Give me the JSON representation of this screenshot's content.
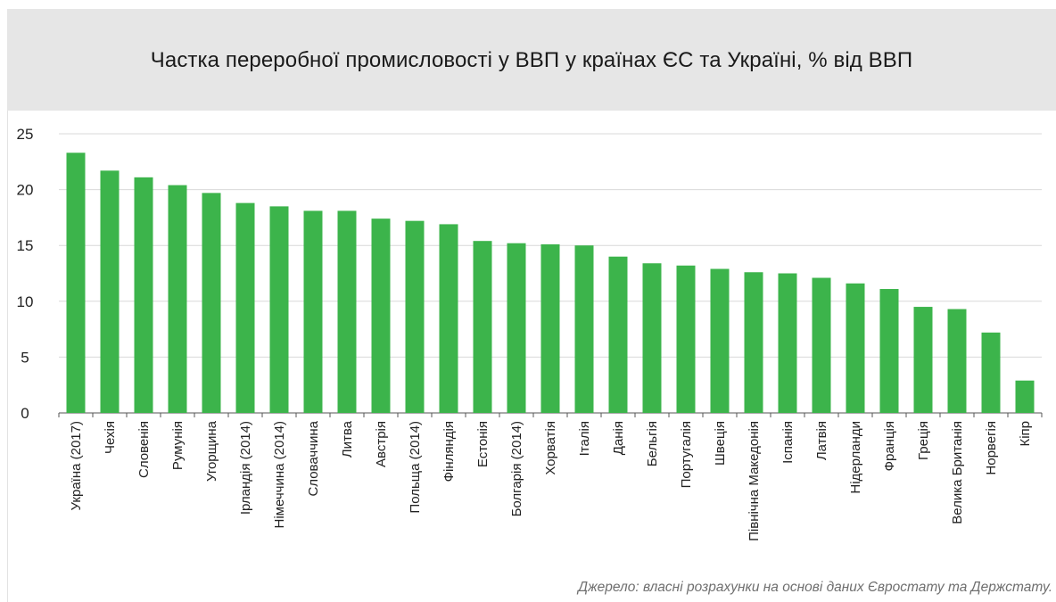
{
  "chart_data": {
    "type": "bar",
    "title": "Частка переробної промисловості у ВВП у країнах ЄС та Україні, % від ВВП",
    "xlabel": "",
    "ylabel": "",
    "ylim": [
      0,
      25
    ],
    "yticks": [
      0,
      5,
      10,
      15,
      20,
      25
    ],
    "grid": true,
    "legend": "none",
    "bar_color": "#3cb44b",
    "categories": [
      "Україна (2017)",
      "Чехія",
      "Словенія",
      "Румунія",
      "Угорщина",
      "Ірландія (2014)",
      "Німеччина (2014)",
      "Словаччина",
      "Литва",
      "Австрія",
      "Польща (2014)",
      "Фінляндія",
      "Естонія",
      "Болгарія (2014)",
      "Хорватія",
      "Італія",
      "Данія",
      "Бельгія",
      "Португалія",
      "Швеція",
      "Північна Македонія",
      "Іспанія",
      "Латвія",
      "Нідерланди",
      "Франція",
      "Греція",
      "Велика Британія",
      "Норвегія",
      "Кіпр"
    ],
    "values": [
      23.3,
      21.7,
      21.1,
      20.4,
      19.7,
      18.8,
      18.5,
      18.1,
      18.1,
      17.4,
      17.2,
      16.9,
      15.4,
      15.2,
      15.1,
      15.0,
      14.0,
      13.4,
      13.2,
      12.9,
      12.6,
      12.5,
      12.1,
      11.6,
      11.1,
      9.5,
      9.3,
      7.2,
      2.9
    ]
  },
  "source": "Джерело: власні розрахунки на основі даних Євростату та Держстату."
}
